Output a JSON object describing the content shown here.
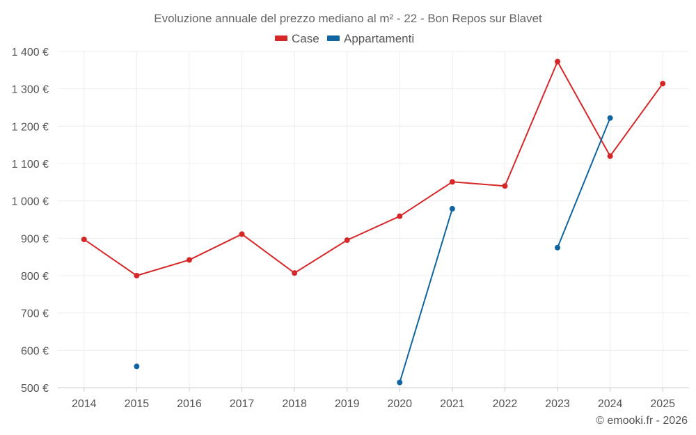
{
  "chart_data": {
    "type": "line",
    "title": "Evoluzione annuale del prezzo mediano al m² - 22 - Bon Repos sur Blavet",
    "categories": [
      "2014",
      "2015",
      "2016",
      "2017",
      "2018",
      "2019",
      "2020",
      "2021",
      "2022",
      "2023",
      "2024",
      "2025"
    ],
    "ylim": [
      500,
      1400
    ],
    "yticks": [
      500,
      600,
      700,
      800,
      900,
      1000,
      1100,
      1200,
      1300,
      1400
    ],
    "ytick_labels": [
      "500 €",
      "600 €",
      "700 €",
      "800 €",
      "900 €",
      "1 000 €",
      "1 100 €",
      "1 200 €",
      "1 300 €",
      "1 400 €"
    ],
    "grid": true,
    "legend_position": "top-center",
    "series": [
      {
        "name": "Case",
        "color": "#d62728",
        "values": [
          897,
          800,
          842,
          911,
          807,
          895,
          959,
          1051,
          1040,
          1373,
          1120,
          1314
        ]
      },
      {
        "name": "Appartamenti",
        "color": "#1065a0",
        "values": [
          null,
          557,
          null,
          null,
          null,
          null,
          514,
          979,
          null,
          875,
          1222,
          null
        ]
      }
    ],
    "credit": "© emooki.fr - 2026"
  }
}
